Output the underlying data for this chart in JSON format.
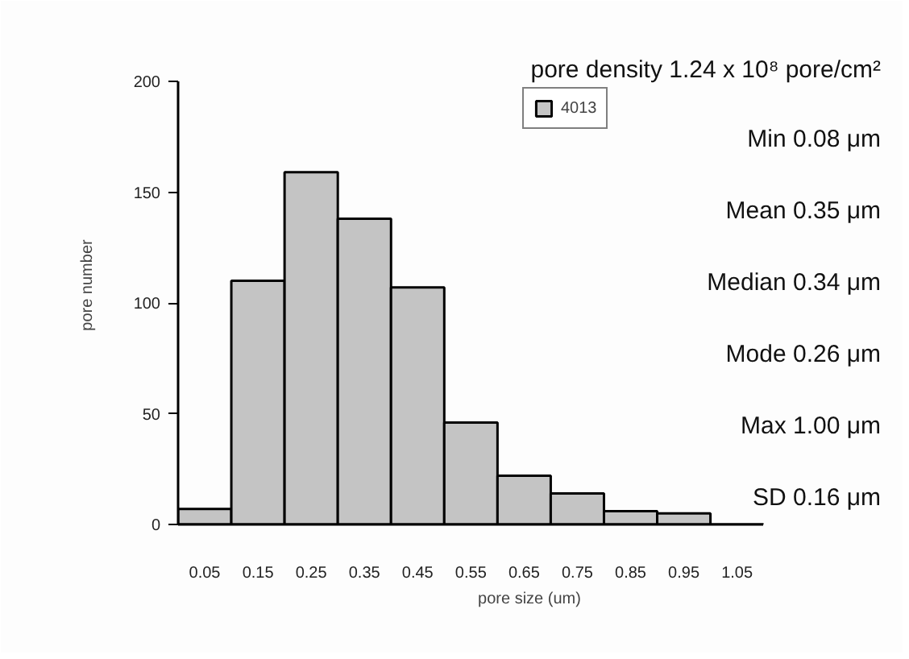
{
  "chart_data": {
    "type": "bar",
    "categories": [
      "0.05",
      "0.15",
      "0.25",
      "0.35",
      "0.45",
      "0.55",
      "0.65",
      "0.75",
      "0.85",
      "0.95",
      "1.05"
    ],
    "series": [
      {
        "name": "4013",
        "color": "#c4c4c4",
        "values": [
          7,
          110,
          159,
          138,
          107,
          46,
          22,
          14,
          6,
          5,
          0
        ]
      }
    ],
    "xlabel": "pore size (um)",
    "ylabel": "pore number",
    "ylim": [
      0,
      200
    ],
    "yticks": [
      0,
      50,
      100,
      150,
      200
    ],
    "legend": "top",
    "annotations": [
      "pore density 1.24 x 10⁸ pore/cm²",
      "Min 0.08 μm",
      "Mean 0.35 μm",
      "Median 0.34 μm",
      "Mode 0.26 μm",
      "Max 1.00 μm",
      "SD 0.16 μm"
    ]
  }
}
